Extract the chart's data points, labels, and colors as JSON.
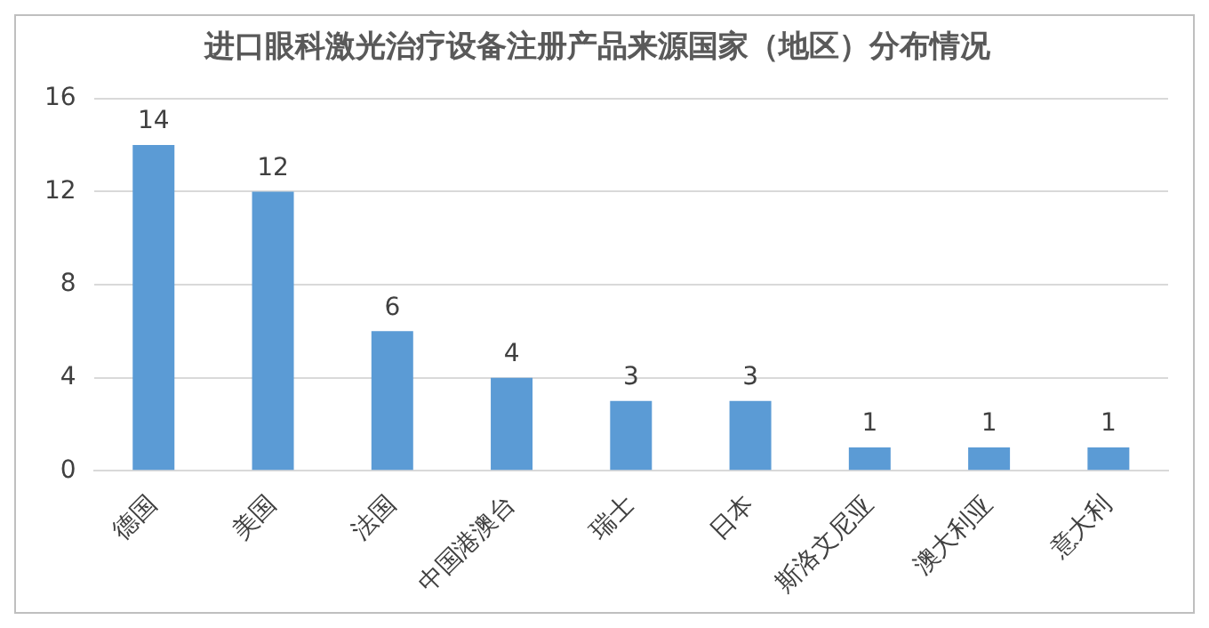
{
  "chart_data": {
    "type": "bar",
    "title": "进口眼科激光治疗设备注册产品来源国家（地区）分布情况",
    "categories": [
      "德国",
      "美国",
      "法国",
      "中国港澳台",
      "瑞士",
      "日本",
      "斯洛文尼亚",
      "澳大利亚",
      "意大利"
    ],
    "values": [
      14,
      12,
      6,
      4,
      3,
      3,
      1,
      1,
      1
    ],
    "color": "#5b9bd5",
    "ylim": [
      0,
      16
    ],
    "yticks": [
      0,
      4,
      8,
      12,
      16
    ],
    "grid": "y",
    "data_labels": true
  }
}
